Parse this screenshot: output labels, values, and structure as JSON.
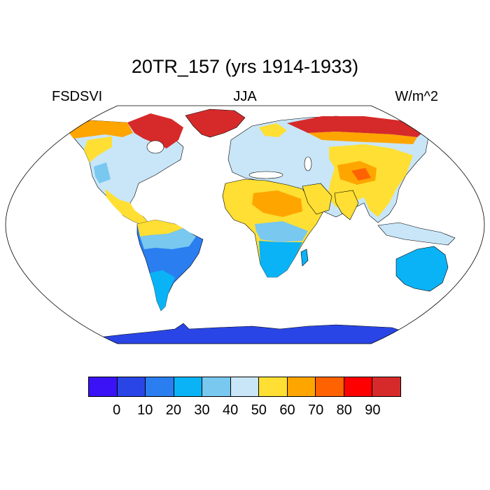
{
  "title": "20TR_157 (yrs 1914-1933)",
  "left_label": "FSDSVI",
  "center_label": "JJA",
  "right_label": "W/m^2",
  "colorbar": {
    "colors": [
      "#3b12f5",
      "#2a45e6",
      "#2a7ef0",
      "#0ab3f5",
      "#78c8f0",
      "#c8e6f8",
      "#ffdf33",
      "#ffa500",
      "#ff6200",
      "#ff0000",
      "#d62a2a"
    ],
    "tick_labels": [
      "0",
      "10",
      "20",
      "30",
      "40",
      "50",
      "60",
      "70",
      "80",
      "90"
    ]
  },
  "colors": {
    "ocean": "#ffffff",
    "outline": "#000000"
  }
}
